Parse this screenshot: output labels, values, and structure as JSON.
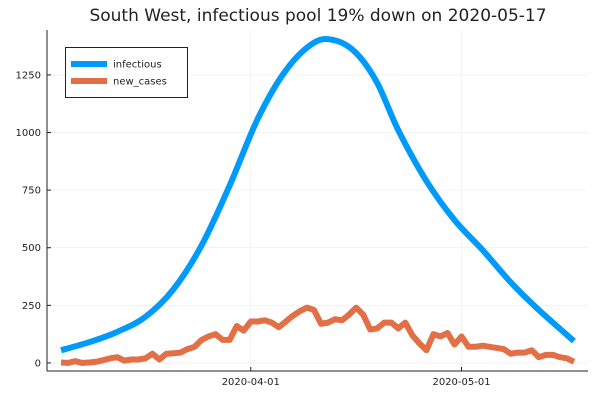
{
  "chart_data": {
    "type": "line",
    "title": "South West, infectious pool 19% down on 2020-05-17",
    "xlabel": "",
    "ylabel": "",
    "grid": true,
    "legend_position": "top-left",
    "xlim": [
      "2020-03-03",
      "2020-05-19"
    ],
    "ylim": [
      -35,
      1445
    ],
    "x_ticks": [
      {
        "date": "2020-04-01",
        "label": "2020-04-01"
      },
      {
        "date": "2020-05-01",
        "label": "2020-05-01"
      }
    ],
    "y_ticks": [
      {
        "value": 0,
        "label": "0"
      },
      {
        "value": 250,
        "label": "250"
      },
      {
        "value": 500,
        "label": "500"
      },
      {
        "value": 750,
        "label": "750"
      },
      {
        "value": 1000,
        "label": "1000"
      },
      {
        "value": 1250,
        "label": "1250"
      }
    ],
    "series": [
      {
        "name": "infectious",
        "color": "#009af9",
        "x": [
          "2020-03-05",
          "2020-03-09",
          "2020-03-13",
          "2020-03-17",
          "2020-03-21",
          "2020-03-25",
          "2020-03-29",
          "2020-04-02",
          "2020-04-06",
          "2020-04-10",
          "2020-04-13",
          "2020-04-16",
          "2020-04-19",
          "2020-04-22",
          "2020-04-26",
          "2020-04-30",
          "2020-05-04",
          "2020-05-08",
          "2020-05-12",
          "2020-05-17"
        ],
        "y": [
          55,
          90,
          135,
          200,
          320,
          510,
          770,
          1060,
          1270,
          1390,
          1400,
          1345,
          1215,
          1010,
          790,
          620,
          490,
          350,
          230,
          95
        ]
      },
      {
        "name": "new_cases",
        "color": "#e26f46",
        "x": [
          "2020-03-05",
          "2020-03-06",
          "2020-03-07",
          "2020-03-08",
          "2020-03-09",
          "2020-03-10",
          "2020-03-11",
          "2020-03-12",
          "2020-03-13",
          "2020-03-14",
          "2020-03-15",
          "2020-03-16",
          "2020-03-17",
          "2020-03-18",
          "2020-03-19",
          "2020-03-20",
          "2020-03-21",
          "2020-03-22",
          "2020-03-23",
          "2020-03-24",
          "2020-03-25",
          "2020-03-26",
          "2020-03-27",
          "2020-03-28",
          "2020-03-29",
          "2020-03-30",
          "2020-03-31",
          "2020-04-01",
          "2020-04-02",
          "2020-04-03",
          "2020-04-04",
          "2020-04-05",
          "2020-04-06",
          "2020-04-07",
          "2020-04-08",
          "2020-04-09",
          "2020-04-10",
          "2020-04-11",
          "2020-04-12",
          "2020-04-13",
          "2020-04-14",
          "2020-04-15",
          "2020-04-16",
          "2020-04-17",
          "2020-04-18",
          "2020-04-19",
          "2020-04-20",
          "2020-04-21",
          "2020-04-22",
          "2020-04-23",
          "2020-04-24",
          "2020-04-25",
          "2020-04-26",
          "2020-04-27",
          "2020-04-28",
          "2020-04-29",
          "2020-04-30",
          "2020-05-01",
          "2020-05-02",
          "2020-05-03",
          "2020-05-04",
          "2020-05-05",
          "2020-05-06",
          "2020-05-07",
          "2020-05-08",
          "2020-05-09",
          "2020-05-10",
          "2020-05-11",
          "2020-05-12",
          "2020-05-13",
          "2020-05-14",
          "2020-05-15",
          "2020-05-16",
          "2020-05-17"
        ],
        "y": [
          2,
          0,
          8,
          0,
          2,
          5,
          12,
          20,
          25,
          10,
          15,
          15,
          20,
          40,
          15,
          40,
          42,
          45,
          60,
          70,
          100,
          115,
          125,
          100,
          100,
          160,
          140,
          180,
          180,
          185,
          175,
          155,
          180,
          205,
          225,
          240,
          230,
          170,
          175,
          190,
          185,
          210,
          240,
          210,
          145,
          150,
          175,
          175,
          150,
          175,
          120,
          85,
          55,
          125,
          115,
          130,
          80,
          115,
          70,
          70,
          75,
          70,
          65,
          60,
          40,
          45,
          45,
          55,
          25,
          35,
          35,
          25,
          20,
          5
        ]
      }
    ]
  }
}
